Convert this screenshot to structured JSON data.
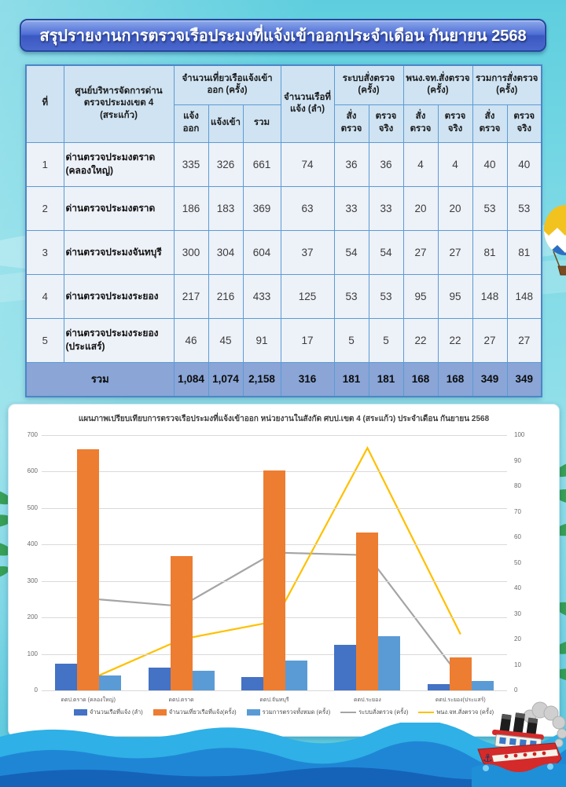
{
  "title": "สรุปรายงานการตรวจเรือประมงที่แจ้งเข้าออกประจำเดือน กันยายน 2568",
  "table": {
    "col_headers": {
      "no": "ที่",
      "station": "ศูนย์บริหารจัดการด่านตรวจประมงเขต 4 (สระแก้ว)",
      "trips_group": "จำนวนเที่ยวเรือแจ้งเข้าออก (ครั้ง)",
      "trips_sub": [
        "แจ้งออก",
        "แจ้งเข้า",
        "รวม"
      ],
      "boats": "จำนวนเรือที่แจ้ง (ลำ)",
      "system_group": "ระบบสั่งตรวจ (ครั้ง)",
      "officer_group": "พนง.จท.สั่งตรวจ (ครั้ง)",
      "total_group": "รวมการสั่งตรวจ (ครั้ง)",
      "order_sub": [
        "สั่งตรวจ",
        "ตรวจจริง"
      ]
    },
    "rows": [
      {
        "no": "1",
        "station": "ด่านตรวจประมงตราด (คลองใหญ่)",
        "values": [
          "335",
          "326",
          "661",
          "74",
          "36",
          "36",
          "4",
          "4",
          "40",
          "40"
        ]
      },
      {
        "no": "2",
        "station": "ด่านตรวจประมงตราด",
        "values": [
          "186",
          "183",
          "369",
          "63",
          "33",
          "33",
          "20",
          "20",
          "53",
          "53"
        ]
      },
      {
        "no": "3",
        "station": "ด่านตรวจประมงจันทบุรี",
        "values": [
          "300",
          "304",
          "604",
          "37",
          "54",
          "54",
          "27",
          "27",
          "81",
          "81"
        ]
      },
      {
        "no": "4",
        "station": "ด่านตรวจประมงระยอง",
        "values": [
          "217",
          "216",
          "433",
          "125",
          "53",
          "53",
          "95",
          "95",
          "148",
          "148"
        ]
      },
      {
        "no": "5",
        "station": "ด่านตรวจประมงระยอง (ประแสร์)",
        "values": [
          "46",
          "45",
          "91",
          "17",
          "5",
          "5",
          "22",
          "22",
          "27",
          "27"
        ]
      }
    ],
    "total_row": {
      "label": "รวม",
      "values": [
        "1,084",
        "1,074",
        "2,158",
        "316",
        "181",
        "181",
        "168",
        "168",
        "349",
        "349"
      ]
    }
  },
  "chart_data": {
    "type": "bar",
    "title": "แผนภาพเปรียบเทียบการตรวจเรือประมงที่แจ้งเข้าออก หน่วยงานในสังกัด ศบป.เขต 4 (สระแก้ว) ประจำเดือน กันยายน 2568",
    "categories": [
      "ดตป.ตราด (คลองใหญ่)",
      "ดตป.ตราด",
      "ดตป.จันทบุรี",
      "ดตป.ระยอง",
      "ดตป.ระยอง(ประแสร์)"
    ],
    "series": [
      {
        "name": "จำนวนเรือที่แจ้ง (ลำ)",
        "render": "bar",
        "axis": "left",
        "color": "#4472c4",
        "values": [
          74,
          63,
          37,
          125,
          17
        ]
      },
      {
        "name": "จำนวนเที่ยวเรือที่แจ้ง(ครั้ง)",
        "render": "bar",
        "axis": "left",
        "color": "#ed7d31",
        "values": [
          661,
          369,
          604,
          433,
          91
        ]
      },
      {
        "name": "รวมการตรวจทั้งหมด (ครั้ง)",
        "render": "bar",
        "axis": "left",
        "color": "#5b9bd5",
        "values": [
          40,
          53,
          81,
          148,
          27
        ]
      },
      {
        "name": "ระบบสั่งตรวจ (ครั้ง)",
        "render": "line",
        "axis": "right",
        "color": "#a5a5a5",
        "values": [
          36,
          33,
          54,
          53,
          5
        ]
      },
      {
        "name": "พนง.จท.สั่งตรวจ (ครั้ง)",
        "render": "line",
        "axis": "right",
        "color": "#ffc000",
        "values": [
          4,
          20,
          27,
          95,
          22
        ]
      }
    ],
    "left_axis": {
      "min": 0,
      "max": 700,
      "step": 100
    },
    "right_axis": {
      "min": 0,
      "max": 100,
      "step": 10
    },
    "grid": true,
    "legend_position": "bottom"
  }
}
